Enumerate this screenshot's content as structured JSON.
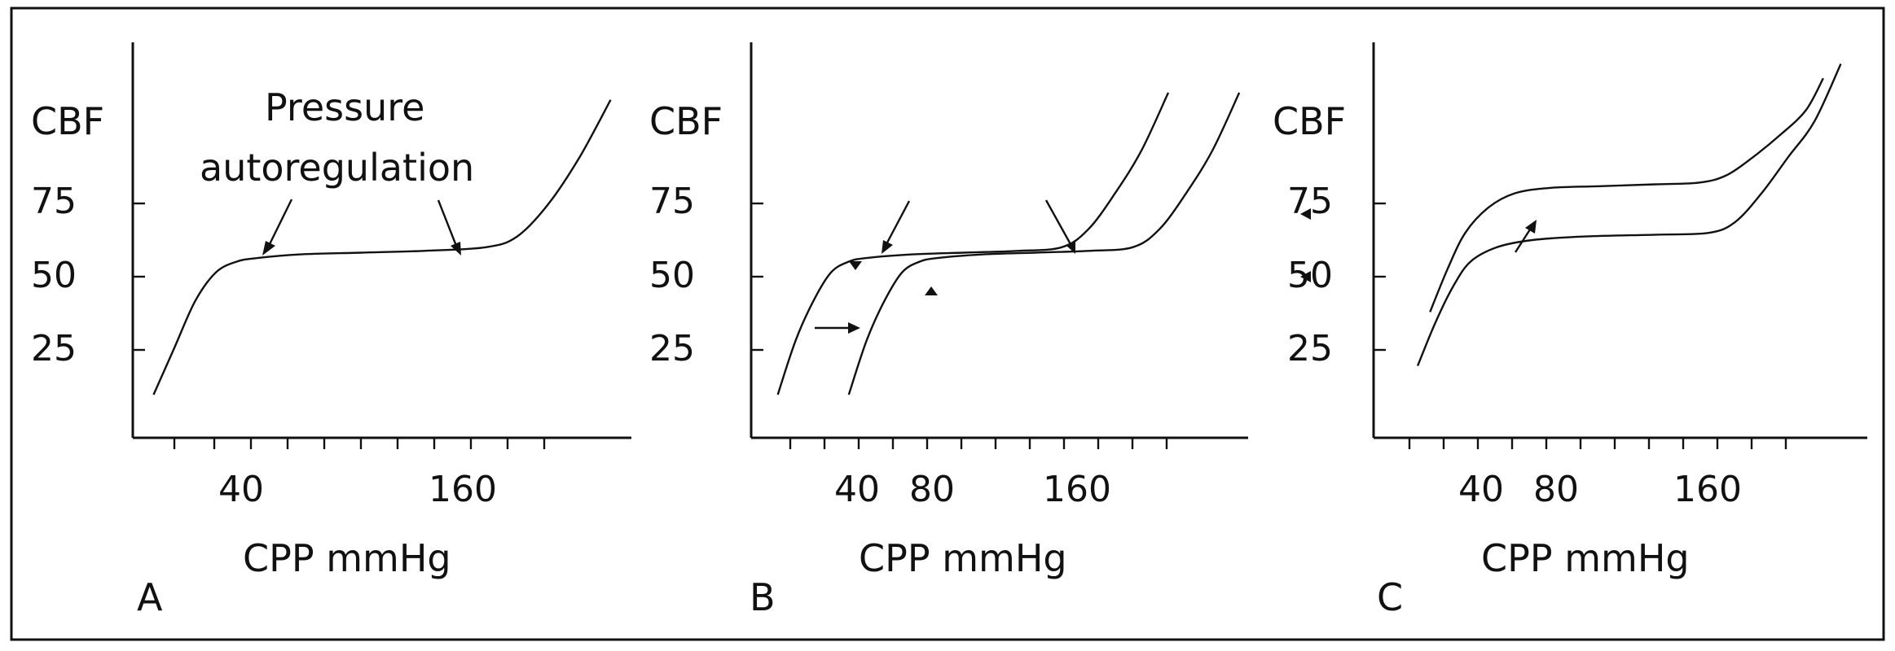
{
  "chart_data": [
    {
      "type": "line",
      "panel_label": "A",
      "ylabel": "CBF",
      "xlabel": "CPP mmHg",
      "yticks": [
        "75",
        "50",
        "25"
      ],
      "xticks": [
        "40",
        "160"
      ],
      "annotation": {
        "line1": "Pressure",
        "line2": "autoregulation"
      },
      "ylim": [
        0,
        110
      ],
      "xlim": [
        -20,
        220
      ],
      "series": [
        {
          "x": [
            -10,
            0,
            10,
            20,
            30,
            40,
            60,
            90,
            120,
            150,
            165,
            180,
            195,
            210
          ],
          "y": [
            12,
            25,
            38,
            46,
            49,
            50,
            51,
            51.5,
            52,
            53,
            56,
            65,
            78,
            94
          ]
        }
      ]
    },
    {
      "type": "line",
      "panel_label": "B",
      "ylabel": "CBF",
      "xlabel": "CPP mmHg",
      "yticks": [
        "75",
        "50",
        "25"
      ],
      "xticks": [
        "40",
        "80",
        "160"
      ],
      "ylim": [
        0,
        110
      ],
      "xlim": [
        -20,
        260
      ],
      "series": [
        {
          "x": [
            -5,
            5,
            15,
            25,
            35,
            45,
            70,
            100,
            130,
            155,
            170,
            185,
            200,
            215
          ],
          "y": [
            12,
            27,
            38,
            46,
            49,
            50,
            51,
            51.5,
            52,
            53,
            58,
            68,
            80,
            96
          ]
        },
        {
          "x": [
            35,
            45,
            55,
            65,
            75,
            85,
            110,
            140,
            170,
            195,
            210,
            225,
            240,
            255
          ],
          "y": [
            12,
            27,
            38,
            46,
            49,
            50,
            51,
            51.5,
            52,
            53,
            58,
            68,
            80,
            96
          ]
        }
      ]
    },
    {
      "type": "line",
      "panel_label": "C",
      "ylabel": "CBF",
      "xlabel": "CPP mmHg",
      "yticks": [
        "75",
        "50",
        "25"
      ],
      "xticks": [
        "40",
        "80",
        "160"
      ],
      "ylim": [
        0,
        110
      ],
      "xlim": [
        -20,
        260
      ],
      "series": [
        {
          "x": [
            5,
            15,
            25,
            35,
            50,
            70,
            100,
            140,
            170,
            185,
            200,
            215,
            230,
            245
          ],
          "y": [
            20,
            32,
            42,
            49,
            53,
            55,
            56,
            56.5,
            57,
            60,
            68,
            78,
            88,
            104
          ]
        },
        {
          "x": [
            12,
            22,
            32,
            45,
            60,
            80,
            110,
            140,
            165,
            180,
            195,
            210,
            225,
            235
          ],
          "y": [
            35,
            47,
            57,
            64,
            68,
            69.5,
            70,
            70.5,
            71,
            73,
            78,
            84,
            91,
            100
          ]
        }
      ]
    }
  ]
}
